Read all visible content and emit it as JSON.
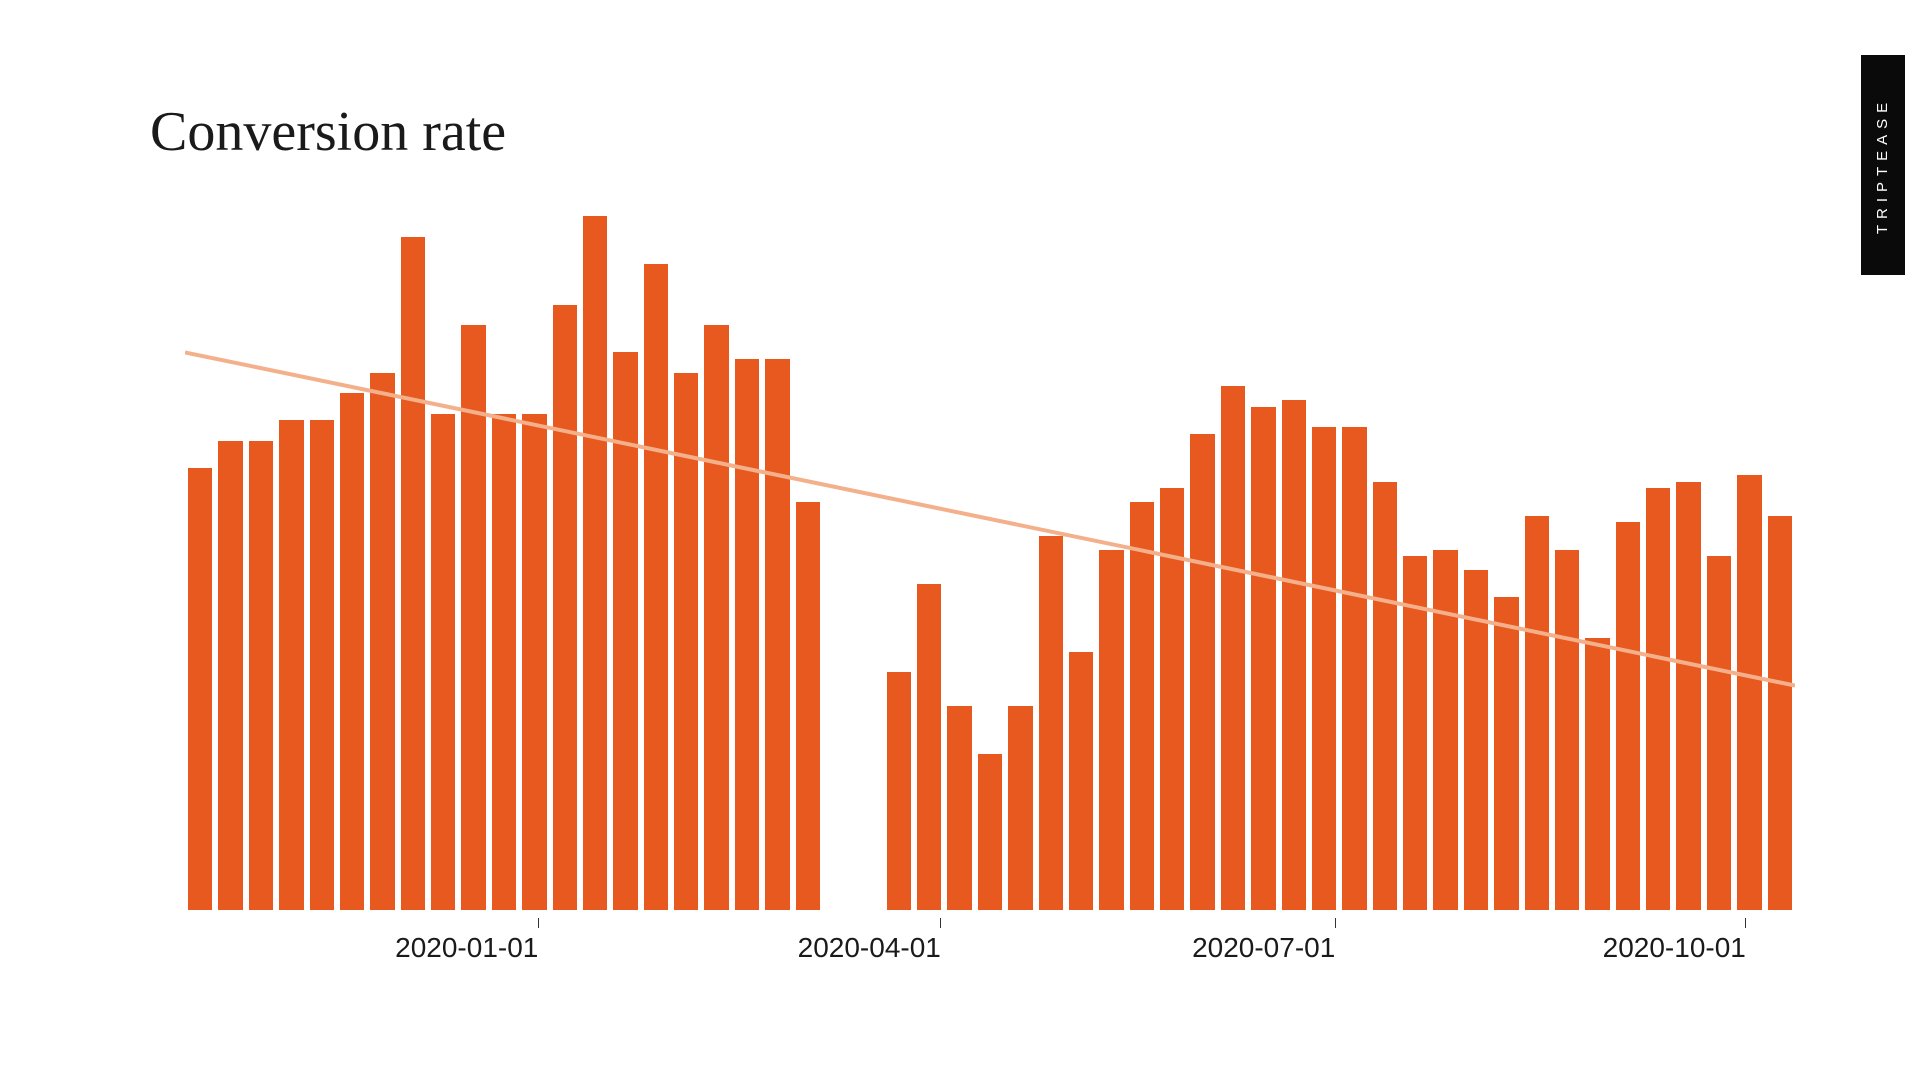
{
  "title": "Conversion rate",
  "brand": "TRIPTEASE",
  "chart": {
    "type": "bar",
    "bar_color": "#e8591f",
    "trend_color": "#f3b08b",
    "trend_width": 4,
    "background_color": "#ffffff",
    "ymax": 100,
    "values": [
      65,
      69,
      69,
      72,
      72,
      76,
      79,
      99,
      73,
      86,
      73,
      73,
      89,
      102,
      82,
      95,
      79,
      86,
      81,
      81,
      60,
      0,
      0,
      35,
      48,
      30,
      23,
      30,
      55,
      38,
      53,
      60,
      62,
      70,
      77,
      74,
      75,
      71,
      71,
      63,
      52,
      53,
      50,
      46,
      58,
      53,
      40,
      57,
      62,
      63,
      52,
      64,
      58
    ],
    "trend": {
      "y1_pct": 82,
      "y2_pct": 33
    },
    "x_ticks": [
      {
        "pos_pct": 17.5,
        "label": "2020-01-01"
      },
      {
        "pos_pct": 42.5,
        "label": "2020-04-01"
      },
      {
        "pos_pct": 67.0,
        "label": "2020-07-01"
      },
      {
        "pos_pct": 92.5,
        "label": "2020-10-01"
      }
    ],
    "title_fontsize": 56,
    "axis_fontsize": 28,
    "axis_color": "#1a1a1a"
  }
}
